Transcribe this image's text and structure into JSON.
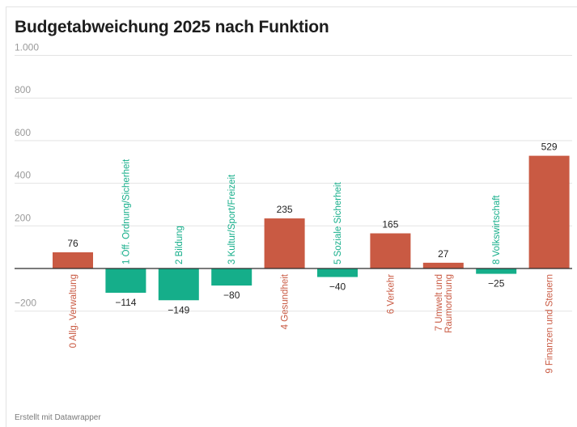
{
  "title": "Budgetabweichung 2025 nach Funktion",
  "footer": "Erstellt mit Datawrapper",
  "chart_data": {
    "type": "bar",
    "title": "Budgetabweichung 2025 nach Funktion",
    "xlabel": "",
    "ylabel": "",
    "ylim": [
      -200,
      1000
    ],
    "yticks": [
      -200,
      200,
      400,
      600,
      800,
      1000
    ],
    "ytick_labels": [
      "−200",
      "200",
      "400",
      "600",
      "800",
      "1.000"
    ],
    "grid": true,
    "categories": [
      "0 Allg. Verwaltung",
      "1 Öff. Ordnung/Sicherheit",
      "2 Bildung",
      "3 Kultur/Sport/Freizeit",
      "4 Gesundheit",
      "5 Soziale Sicherheit",
      "6 Verkehr",
      "7 Umwelt und Raumordnung",
      "8 Volkswirtschaft",
      "9 Finanzen und Steuern"
    ],
    "category_lines": [
      [
        "0 Allg. Verwaltung"
      ],
      [
        "1 Öff. Ordnung/Sicherheit"
      ],
      [
        "2 Bildung"
      ],
      [
        "3 Kultur/Sport/Freizeit"
      ],
      [
        "4 Gesundheit"
      ],
      [
        "5 Soziale Sicherheit"
      ],
      [
        "6 Verkehr"
      ],
      [
        "7 Umwelt und",
        "Raumordnung"
      ],
      [
        "8 Volkswirtschaft"
      ],
      [
        "9 Finanzen und Steuern"
      ]
    ],
    "values": [
      76,
      -114,
      -149,
      -80,
      235,
      -40,
      165,
      27,
      -25,
      529
    ],
    "value_labels": [
      "76",
      "−114",
      "−149",
      "−80",
      "235",
      "−40",
      "165",
      "27",
      "−25",
      "529"
    ],
    "colors": {
      "positive": "#c95a43",
      "negative": "#15ae8a",
      "grid": "#e3e3e3",
      "axis": "#2b2b2b",
      "tick": "#9a9a9a",
      "value": "#222222"
    }
  }
}
